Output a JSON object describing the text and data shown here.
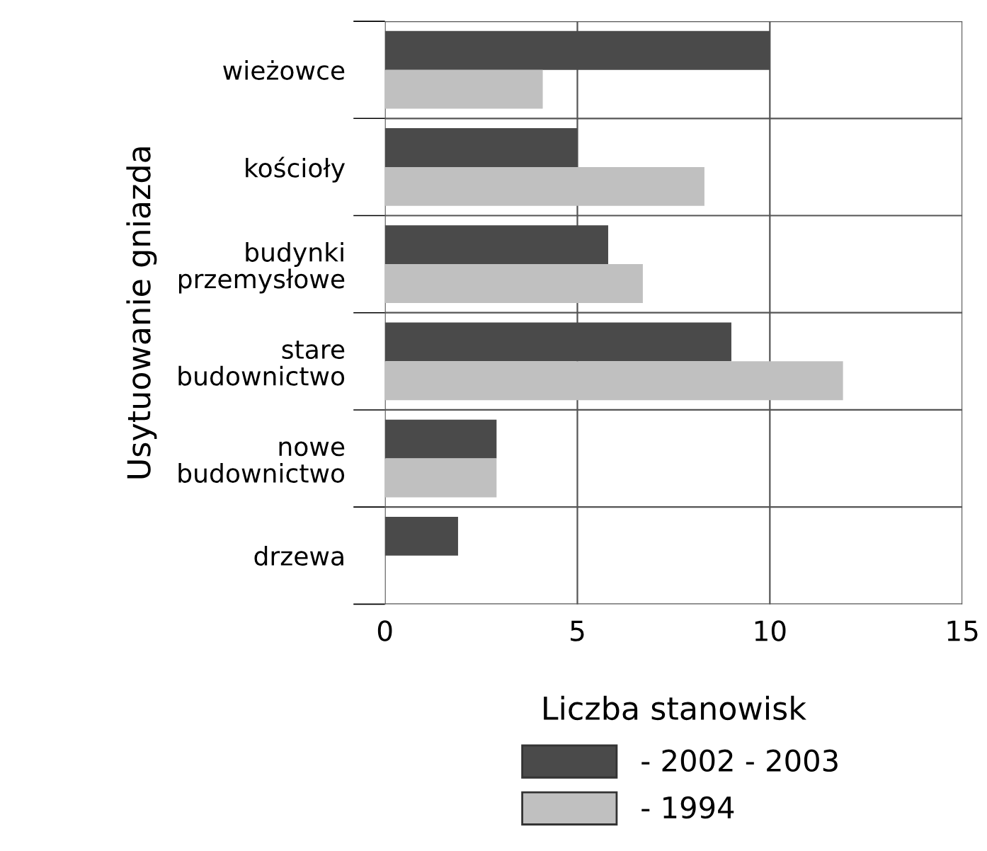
{
  "chart_data": {
    "type": "bar",
    "orientation": "horizontal",
    "xlabel": "Liczba stanowisk",
    "ylabel": "Usytuowanie gniazda",
    "categories": [
      "wieżowce",
      "kościoły",
      "budynki\nprzemysłowe",
      "stare\nbudownictwo",
      "nowe\nbudownictwo",
      "drzewa"
    ],
    "series": [
      {
        "name": "- 2002 - 2003",
        "color": "#4a4a4a",
        "values": [
          10.0,
          5.0,
          5.8,
          9.0,
          2.9,
          1.9
        ]
      },
      {
        "name": "- 1994",
        "color": "#c0c0c0",
        "values": [
          4.1,
          8.3,
          6.7,
          11.9,
          2.9,
          null
        ]
      }
    ],
    "xlim": [
      0,
      15
    ],
    "xticks": [
      0,
      5,
      10,
      15
    ],
    "grid": "x",
    "legend": "bottom"
  }
}
